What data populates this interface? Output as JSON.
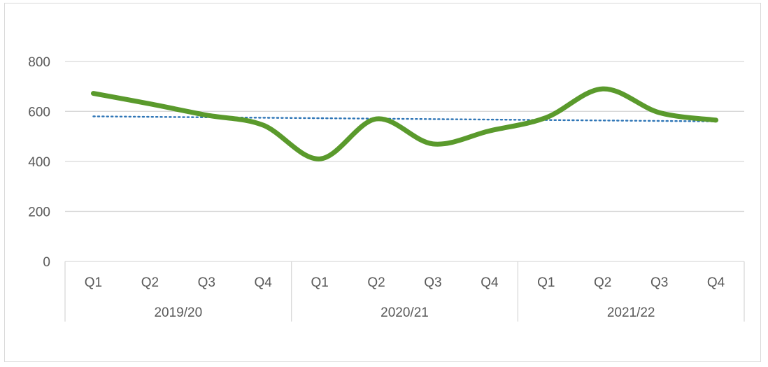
{
  "chart_data": {
    "type": "line",
    "title": "",
    "xlabel": "",
    "ylabel": "",
    "ylim": [
      0,
      900
    ],
    "yticks": [
      0,
      200,
      400,
      600,
      800
    ],
    "grid": true,
    "smooth": true,
    "groups": [
      {
        "label": "2019/20",
        "categories": [
          "Q1",
          "Q2",
          "Q3",
          "Q4"
        ]
      },
      {
        "label": "2020/21",
        "categories": [
          "Q1",
          "Q2",
          "Q3",
          "Q4"
        ]
      },
      {
        "label": "2021/22",
        "categories": [
          "Q1",
          "Q2",
          "Q3",
          "Q4"
        ]
      }
    ],
    "series": [
      {
        "values": [
          672,
          630,
          585,
          545,
          410,
          570,
          470,
          522,
          575,
          690,
          595,
          565
        ],
        "color": "#5a9a2c",
        "style": "solid"
      },
      {
        "type": "trendline",
        "values_linear": [
          580,
          560
        ],
        "color": "#2e75b6",
        "style": "dotted"
      }
    ]
  }
}
